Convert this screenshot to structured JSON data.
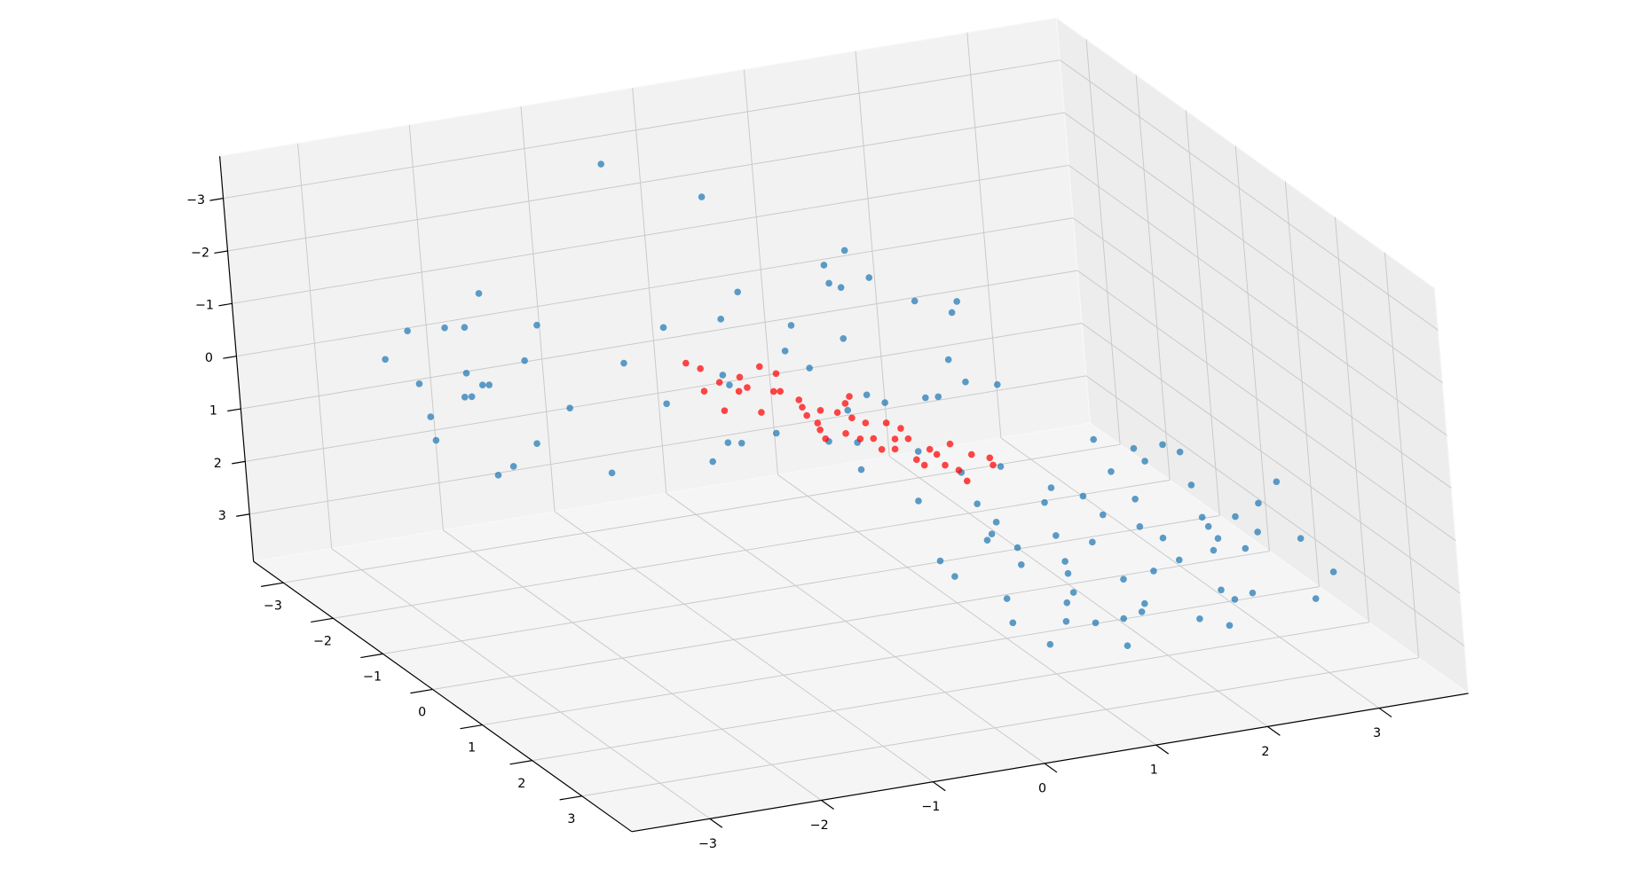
{
  "chart_data": {
    "type": "scatter3d",
    "xlim": [
      -3.7,
      3.8
    ],
    "ylim": [
      -3.6,
      4.0
    ],
    "zlim": [
      -3.8,
      3.9
    ],
    "z_inverted": true,
    "grid": true,
    "xticks": [
      {
        "value": -3,
        "label": "−3"
      },
      {
        "value": -2,
        "label": "−2"
      },
      {
        "value": -1,
        "label": "−1"
      },
      0,
      1,
      2,
      3
    ],
    "yticks": [
      {
        "value": -3,
        "label": "−3"
      },
      {
        "value": -2,
        "label": "−2"
      },
      {
        "value": -1,
        "label": "−1"
      },
      0,
      1,
      2,
      3
    ],
    "zticks": [
      {
        "value": -3,
        "label": "−3"
      },
      {
        "value": -2,
        "label": "−2"
      },
      {
        "value": -1,
        "label": "−1"
      },
      0,
      1,
      2,
      3
    ],
    "series": [
      {
        "color": "#1f77b4",
        "x": [
          1.2,
          2.5,
          3.1,
          1.8,
          0.9,
          2.9,
          1.5,
          3.3,
          2.2,
          1.0,
          2.7,
          1.9,
          3.4,
          1.3,
          2.4,
          0.8,
          2.0,
          3.0,
          1.6,
          2.8,
          1.1,
          3.2,
          2.1,
          1.4,
          2.6,
          0.9,
          3.5,
          1.7,
          2.3,
          1.2,
          2.9,
          1.8,
          3.1,
          0.7,
          2.5,
          1.5,
          3.3,
          2.0,
          1.0,
          2.7,
          1.9,
          3.0,
          1.3,
          2.2,
          3.4,
          0.9,
          2.6,
          1.6,
          2.9,
          1.4,
          2.1,
          3.2,
          1.8,
          2.4,
          0.8,
          3.1,
          1.5,
          2.3,
          2.8,
          1.1,
          -0.8,
          0.2,
          1.1,
          0.5,
          -0.4,
          1.6,
          0.9,
          -0.1,
          1.3,
          0.4,
          1.8,
          -0.6,
          0.7,
          1.5,
          0.0,
          1.0,
          -0.9,
          1.9,
          0.3,
          1.2,
          -0.3,
          0.8,
          1.7,
          0.1,
          1.4,
          -0.7,
          0.6,
          1.1,
          0.4,
          1.6,
          -0.2,
          0.9,
          1.3,
          0.2,
          1.8,
          -2.5,
          -2.3,
          -2.0,
          -2.7,
          -1.8,
          -2.2,
          -2.6,
          -1.9,
          -2.4,
          -2.1,
          -1.6,
          -2.8,
          -2.3,
          -1.7,
          -2.5,
          -2.0,
          -1.5,
          -2.2,
          -1.9,
          -2.6,
          -0.5,
          0.2
        ],
        "y": [
          0.5,
          1.2,
          -0.4,
          2.0,
          1.4,
          0.8,
          -0.6,
          1.9,
          0.1,
          2.3,
          -0.9,
          1.1,
          0.3,
          1.7,
          2.4,
          0.2,
          -0.2,
          1.5,
          0.9,
          2.2,
          -0.8,
          -0.1,
          1.6,
          2.6,
          0.4,
          1.0,
          1.0,
          -0.3,
          2.8,
          1.9,
          -0.6,
          0.3,
          2.6,
          1.8,
          -0.1,
          1.3,
          0.7,
          2.1,
          0.0,
          1.4,
          -1.0,
          0.2,
          2.2,
          0.7,
          2.3,
          -0.4,
          1.8,
          0.6,
          1.1,
          -0.1,
          2.5,
          1.3,
          1.6,
          -0.5,
          2.4,
          0.5,
          2.8,
          0.9,
          -0.3,
          1.2,
          -1.5,
          -2.2,
          -1.8,
          -0.6,
          -2.4,
          -1.2,
          -2.0,
          -0.9,
          -0.4,
          -1.6,
          -2.3,
          -1.1,
          -2.5,
          -0.8,
          -1.9,
          -1.3,
          -2.1,
          -1.6,
          -0.3,
          -2.4,
          -1.4,
          -0.7,
          -2.0,
          -2.3,
          -1.0,
          -0.5,
          -1.2,
          -2.2,
          -1.0,
          -0.2,
          -1.7,
          -1.6,
          -2.5,
          -0.8,
          -1.4,
          -2.8,
          -2.1,
          -2.5,
          -1.9,
          -2.9,
          -1.5,
          -2.4,
          -1.8,
          -2.7,
          -1.2,
          -2.2,
          -2.6,
          -1.6,
          -1.4,
          -2.0,
          -2.9,
          -1.1,
          -2.3,
          -2.6,
          -1.3,
          -3.2,
          -2.8
        ],
        "z": [
          2.1,
          2.8,
          1.9,
          3.0,
          3.3,
          2.4,
          2.6,
          2.2,
          3.1,
          2.7,
          2.0,
          1.8,
          2.9,
          2.3,
          3.2,
          2.9,
          2.2,
          3.4,
          3.5,
          1.7,
          1.6,
          2.5,
          2.6,
          3.1,
          1.5,
          2.0,
          1.8,
          3.3,
          2.4,
          1.9,
          3.0,
          2.7,
          2.8,
          2.5,
          2.0,
          3.0,
          3.2,
          1.6,
          3.4,
          2.1,
          2.3,
          1.6,
          2.9,
          3.4,
          2.6,
          2.2,
          3.0,
          1.8,
          2.6,
          2.8,
          2.9,
          1.9,
          3.4,
          2.7,
          3.0,
          3.3,
          2.2,
          2.3,
          1.8,
          2.4,
          0.5,
          -0.8,
          1.2,
          1.6,
          -0.2,
          0.3,
          -1.2,
          0.9,
          1.8,
          -0.5,
          0.0,
          1.4,
          0.7,
          -0.9,
          1.8,
          -1.4,
          0.1,
          1.1,
          0.2,
          -0.4,
          -1.0,
          0.5,
          1.6,
          1.0,
          0.8,
          0.6,
          -1.5,
          0.4,
          1.3,
          0.1,
          0.3,
          1.9,
          -1.0,
          -0.3,
          -0.6,
          -0.6,
          -0.2,
          0.4,
          0.8,
          -1.0,
          1.2,
          0.1,
          -0.5,
          1.0,
          0.6,
          -0.8,
          -0.3,
          1.4,
          0.2,
          -1.2,
          0.9,
          1.3,
          -0.9,
          0.5,
          -0.4,
          -2.8,
          -2.2
        ]
      },
      {
        "color": "#ff0000",
        "x": [
          -0.6,
          -0.4,
          -0.5,
          -0.3,
          -0.2,
          -0.4,
          -0.1,
          -0.3,
          0.0,
          -0.2,
          0.1,
          -0.1,
          0.0,
          0.2,
          -0.1,
          0.1,
          0.0,
          0.2,
          0.1,
          0.3,
          0.2,
          0.4,
          0.3,
          0.5,
          0.4,
          0.6,
          0.5,
          0.7,
          0.6,
          0.8,
          -0.5,
          -0.2,
          0.1,
          -0.3,
          0.0,
          0.2,
          0.3,
          0.0,
          0.4,
          0.2,
          0.5,
          0.6,
          -0.6,
          0.7,
          0.9
        ],
        "y": [
          -1.5,
          -1.3,
          -1.4,
          -1.1,
          -1.2,
          -0.9,
          -0.8,
          -0.7,
          -0.6,
          -0.5,
          -0.4,
          -0.3,
          -0.2,
          -0.1,
          0.0,
          0.1,
          0.2,
          0.3,
          0.4,
          0.5,
          0.6,
          0.7,
          0.8,
          0.9,
          1.0,
          1.1,
          1.2,
          1.3,
          1.4,
          1.5,
          -1.0,
          -0.9,
          -0.7,
          -0.4,
          -0.1,
          0.0,
          0.2,
          0.5,
          0.4,
          0.9,
          0.6,
          0.8,
          -1.2,
          1.0,
          1.2
        ],
        "z": [
          -0.2,
          0.1,
          0.3,
          -0.1,
          0.2,
          0.0,
          -0.3,
          0.3,
          0.1,
          -0.2,
          0.2,
          0.0,
          0.4,
          -0.1,
          0.1,
          0.3,
          -0.2,
          0.0,
          0.2,
          -0.1,
          0.3,
          0.1,
          -0.2,
          0.2,
          0.4,
          0.0,
          0.3,
          0.1,
          0.5,
          0.2,
          0.4,
          -0.4,
          0.5,
          -0.3,
          0.5,
          -0.3,
          0.4,
          -0.3,
          0.5,
          -0.1,
          0.6,
          0.4,
          -0.3,
          0.6,
          0.3
        ]
      }
    ]
  }
}
